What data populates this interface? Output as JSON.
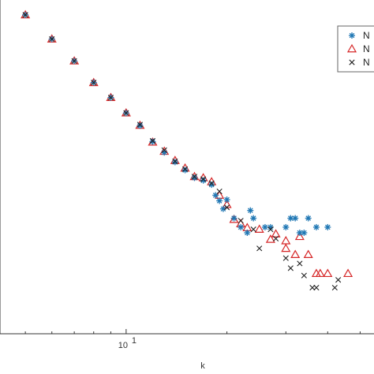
{
  "chart_data": {
    "type": "scatter",
    "title": "",
    "xlabel": "k",
    "ylabel": "",
    "x_scale": "log",
    "y_scale": "log",
    "xlim": [
      4.2,
      55
    ],
    "ylim": [
      3.2e-05,
      0.46
    ],
    "x_tick_labels": [
      {
        "base": "10",
        "exp": "1",
        "value": 10
      }
    ],
    "grid": false,
    "legend_placement": "top-right",
    "series": [
      {
        "name": "N",
        "marker": "asterisk",
        "color": "#1f77b4",
        "points": [
          [
            5,
            0.3
          ],
          [
            6,
            0.15
          ],
          [
            7,
            0.08
          ],
          [
            8,
            0.043
          ],
          [
            9,
            0.028
          ],
          [
            10,
            0.018
          ],
          [
            11,
            0.0125
          ],
          [
            12,
            0.0079
          ],
          [
            13,
            0.0058
          ],
          [
            14,
            0.0044
          ],
          [
            15,
            0.0035
          ],
          [
            16,
            0.0028
          ],
          [
            17,
            0.0026
          ],
          [
            18,
            0.0023
          ],
          [
            18.5,
            0.0017
          ],
          [
            19,
            0.00145
          ],
          [
            19.5,
            0.00115
          ],
          [
            20,
            0.0015
          ],
          [
            21,
            0.00088
          ],
          [
            22,
            0.00068
          ],
          [
            23,
            0.00058
          ],
          [
            23.5,
            0.0011
          ],
          [
            24,
            0.00088
          ],
          [
            26,
            0.00068
          ],
          [
            27,
            0.00068
          ],
          [
            30,
            0.00068
          ],
          [
            31,
            0.00088
          ],
          [
            32,
            0.00088
          ],
          [
            35,
            0.00088
          ],
          [
            37,
            0.00068
          ],
          [
            40,
            0.00068
          ],
          [
            33,
            0.00058
          ],
          [
            34,
            0.00058
          ]
        ]
      },
      {
        "name": "N",
        "marker": "triangle",
        "color": "#d62728",
        "points": [
          [
            5,
            0.3
          ],
          [
            6,
            0.15
          ],
          [
            7,
            0.08
          ],
          [
            8,
            0.043
          ],
          [
            9,
            0.028
          ],
          [
            10,
            0.018
          ],
          [
            11,
            0.0126
          ],
          [
            12,
            0.0078
          ],
          [
            13,
            0.006
          ],
          [
            14,
            0.0046
          ],
          [
            15,
            0.0037
          ],
          [
            16,
            0.0029
          ],
          [
            17,
            0.0028
          ],
          [
            18,
            0.0025
          ],
          [
            19,
            0.0017
          ],
          [
            20,
            0.0013
          ],
          [
            21,
            0.00085
          ],
          [
            22,
            0.00075
          ],
          [
            23,
            0.00067
          ],
          [
            25,
            0.00064
          ],
          [
            27,
            0.00048
          ],
          [
            28,
            0.00056
          ],
          [
            30,
            0.00046
          ],
          [
            30,
            0.00037
          ],
          [
            32,
            0.00031
          ],
          [
            33,
            0.00052
          ],
          [
            35,
            0.00031
          ],
          [
            37,
            0.00018
          ],
          [
            38,
            0.00018
          ],
          [
            40,
            0.00018
          ],
          [
            46,
            0.00018
          ]
        ]
      },
      {
        "name": "N",
        "marker": "cross",
        "color": "#222222",
        "points": [
          [
            5,
            0.3
          ],
          [
            6,
            0.15
          ],
          [
            7,
            0.08
          ],
          [
            8,
            0.043
          ],
          [
            9,
            0.028
          ],
          [
            10,
            0.018
          ],
          [
            11,
            0.0129
          ],
          [
            12,
            0.0081
          ],
          [
            13,
            0.0062
          ],
          [
            14,
            0.0045
          ],
          [
            15,
            0.0036
          ],
          [
            16,
            0.0029
          ],
          [
            17,
            0.0027
          ],
          [
            18,
            0.0024
          ],
          [
            19,
            0.0019
          ],
          [
            20,
            0.0012
          ],
          [
            22,
            0.00082
          ],
          [
            24,
            0.00064
          ],
          [
            25,
            0.00037
          ],
          [
            27,
            0.00064
          ],
          [
            28,
            0.00049
          ],
          [
            30,
            0.00028
          ],
          [
            31,
            0.00021
          ],
          [
            33,
            0.00024
          ],
          [
            34,
            0.00017
          ],
          [
            36,
            0.00012
          ],
          [
            37,
            0.00012
          ],
          [
            42,
            0.00012
          ],
          [
            43,
            0.00015
          ]
        ]
      }
    ]
  },
  "legend": {
    "entries": [
      {
        "label": "N",
        "marker": "asterisk",
        "color": "#1f77b4"
      },
      {
        "label": "N",
        "marker": "triangle",
        "color": "#d62728"
      },
      {
        "label": "N",
        "marker": "cross",
        "color": "#222222"
      }
    ]
  }
}
